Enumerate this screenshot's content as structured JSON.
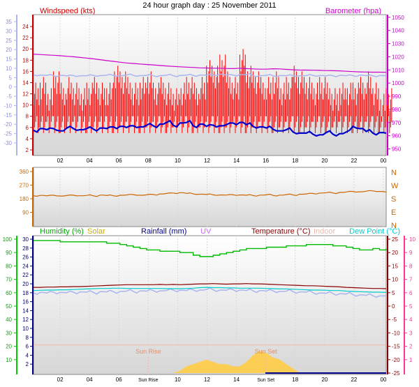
{
  "chart_data": [
    {
      "type": "line",
      "title": "24 hour graph day : 25 November 2011",
      "x_ticks": [
        "02",
        "04",
        "06",
        "08",
        "10",
        "12",
        "14",
        "16",
        "18",
        "20",
        "22",
        "00"
      ],
      "left_label": "Windspeed (kts)",
      "right_label": "Barometer (hpa)",
      "windspeed_ticks": [
        2,
        4,
        6,
        8,
        10,
        12,
        14,
        16,
        18,
        20,
        22,
        24
      ],
      "temp_ticks": [
        -30,
        -25,
        -20,
        -15,
        -10,
        -5,
        0,
        5,
        10,
        15,
        20,
        25,
        30,
        35
      ],
      "baro_ticks": [
        950,
        960,
        970,
        980,
        990,
        1000,
        1010,
        1020,
        1030,
        1040,
        1050
      ],
      "ylim_windspeed": [
        2,
        25
      ],
      "ylim_baro": [
        945,
        1052
      ],
      "series": [
        {
          "name": "Windspeed (kts)",
          "color": "#ff0000",
          "values": [
            12,
            13,
            11,
            14,
            12,
            13,
            12,
            11,
            12,
            13,
            12,
            12,
            15,
            14,
            13,
            12,
            13,
            14,
            12,
            13,
            12,
            11,
            12,
            13,
            12,
            13,
            16,
            15,
            17,
            14,
            13,
            18,
            15,
            14,
            13,
            13,
            14,
            12,
            13,
            15,
            14,
            13,
            12,
            13,
            12,
            11,
            12,
            12,
            12,
            13,
            14,
            12,
            10,
            11
          ]
        },
        {
          "name": "Gust",
          "color": "#0000cc",
          "values": [
            5.5,
            5.8,
            5.6,
            5.8,
            5.4,
            5.9,
            5.8,
            5.6,
            5.8,
            5.7,
            5.9,
            5.8,
            6.1,
            6.2,
            6.0,
            6.3,
            6.1,
            6.4,
            6.3,
            6.6,
            6.9,
            6.4,
            6.8,
            6.9,
            6.3,
            6.6,
            6.2,
            6.4,
            6.3,
            6.5,
            6.8,
            6.9,
            6.5,
            6.2,
            6.1,
            5.9,
            5.7,
            5.4,
            5.6,
            5.2,
            5.0,
            5.0,
            4.8,
            4.7,
            5.1,
            4.8,
            4.9,
            5.2,
            6.2,
            5.8,
            5.3,
            5.0,
            5.1,
            5.0
          ]
        },
        {
          "name": "Barometer (hpa)",
          "color": "#cc00cc",
          "values": [
            1022,
            1021.7,
            1021.4,
            1021.1,
            1020.8,
            1020.4,
            1020,
            1019.5,
            1019,
            1018.4,
            1017.8,
            1017.1,
            1016.5,
            1015.9,
            1015.3,
            1014.9,
            1014.5,
            1014.1,
            1013.8,
            1013.4,
            1013.0,
            1012.7,
            1012.4,
            1012.1,
            1011.9,
            1011.6,
            1011.5,
            1011.3,
            1011.3,
            1011.1,
            1011.0,
            1011.3,
            1011.0,
            1010.8,
            1010.6,
            1010.6,
            1010.9,
            1010.8,
            1010.4,
            1010.1,
            1009.9,
            1009.9,
            1009.8,
            1009.7,
            1009.5,
            1009.4,
            1009.3,
            1009.0,
            1008.7,
            1008.5,
            1008.4,
            1008.3,
            1008.3,
            1008.2
          ]
        },
        {
          "name": "Wind chill",
          "color": "#aab4ee",
          "values": [
            6.5,
            6.3,
            6.2,
            6.0,
            6.2,
            5.9,
            6.1,
            6.0,
            6.0,
            6.2,
            6.1,
            6.3,
            6.2,
            6.1,
            6.4,
            6.2,
            6.1,
            6.2,
            6.0,
            6.1,
            6.3,
            6.0,
            6.2,
            6.3,
            6.2,
            6.4,
            6.3,
            6.5,
            6.8,
            6.2,
            6.4,
            6.6,
            6.6,
            6.0,
            6.1,
            6.2,
            6.0,
            6.1,
            6.0,
            6.2,
            6.0,
            6.1,
            6.2,
            6.1,
            5.9,
            6.0,
            6.2,
            6.0,
            6.1,
            6.3,
            6.0,
            6.0,
            6.1,
            6.0
          ]
        }
      ]
    },
    {
      "type": "scatter",
      "left_ticks": [
        90,
        180,
        270,
        360
      ],
      "right_labels": [
        "N",
        "W",
        "S",
        "E",
        "N"
      ],
      "ylim": [
        0,
        360
      ],
      "series": [
        {
          "name": "Wind direction",
          "color": "#cc6600",
          "values": [
            200,
            202,
            199,
            203,
            198,
            201,
            203,
            200,
            202,
            199,
            204,
            201,
            200,
            203,
            205,
            207,
            203,
            206,
            208,
            212,
            215,
            218,
            220,
            215,
            212,
            210,
            208,
            206,
            205,
            204,
            206,
            205,
            203,
            201,
            204,
            206,
            202,
            204,
            207,
            205,
            210,
            212,
            215,
            218,
            220,
            218,
            222,
            225,
            228,
            226,
            230,
            232,
            228,
            224
          ]
        }
      ]
    },
    {
      "type": "line",
      "labels": {
        "humidity": "Humidity  (%)",
        "solar": "Solar",
        "rainfall": "Rainfall (mm)",
        "uv": "UV",
        "temperature": "Temperature (°C)",
        "indoor": "Indoor",
        "dewpoint": "Dew Point (°C)",
        "sunrise": "Sun Rise",
        "sunset": "Sun Set"
      },
      "x_ticks": [
        "02",
        "04",
        "06",
        "Sun Rise",
        "10",
        "12",
        "14",
        "Sun Set",
        "18",
        "20",
        "22",
        "00"
      ],
      "humidity_ticks": [
        10,
        20,
        30,
        40,
        50,
        60,
        70,
        80,
        90,
        100
      ],
      "rain_ticks": [
        2,
        4,
        6,
        8,
        10,
        12,
        14,
        16,
        18,
        20,
        22,
        24,
        26,
        28,
        30
      ],
      "temp_ticks": [
        -25,
        -20,
        -15,
        -10,
        -5,
        0,
        5,
        10,
        15,
        20,
        25
      ],
      "uv_ticks": [
        1,
        2,
        3,
        4,
        5,
        6,
        7,
        8,
        9,
        10
      ],
      "ylim_humidity": [
        0,
        100
      ],
      "ylim_temperature": [
        -25,
        25
      ],
      "series": [
        {
          "name": "Humidity  (%)",
          "color": "#00bb00",
          "values": [
            99,
            99,
            99,
            99,
            98,
            98,
            98,
            98,
            98,
            98,
            98,
            97,
            97,
            96,
            95,
            94,
            93,
            92,
            92,
            91,
            91,
            91,
            90,
            90,
            88,
            87,
            87,
            88,
            89,
            90,
            91,
            92,
            93,
            93,
            93,
            94,
            94,
            94,
            95,
            95,
            95,
            96,
            96,
            96,
            96,
            95,
            95,
            94,
            93,
            92,
            92,
            93,
            92,
            93
          ]
        },
        {
          "name": "Indoor",
          "color": "#f0b8a8",
          "values": [
            21,
            21,
            21,
            21,
            21,
            21,
            21,
            21,
            21,
            21,
            21,
            21,
            21,
            21,
            21,
            21,
            21,
            21,
            21,
            21,
            21,
            21,
            21,
            21,
            21,
            21,
            21,
            21,
            21,
            21,
            21,
            21,
            21,
            21,
            21,
            21,
            21,
            21,
            21,
            21,
            21,
            21,
            21,
            21,
            21,
            21,
            21,
            21,
            21,
            21,
            21,
            21,
            21,
            21
          ]
        },
        {
          "name": "Temperature (°C)",
          "color": "#880000",
          "values": [
            7.0,
            7.0,
            7.1,
            7.1,
            7.2,
            7.2,
            7.3,
            7.3,
            7.4,
            7.5,
            7.6,
            7.7,
            7.8,
            7.9,
            8.0,
            8.0,
            8.0,
            8.0,
            8.0,
            8.1,
            8.0,
            8.1,
            8.0,
            8.1,
            8.2,
            8.3,
            8.3,
            8.4,
            8.3,
            8.2,
            8.3,
            8.3,
            8.4,
            8.3,
            8.3,
            8.2,
            8.1,
            8.0,
            7.9,
            7.8,
            7.7,
            7.6,
            7.6,
            7.5,
            7.4,
            7.3,
            7.2,
            7.0,
            6.9,
            6.8,
            6.7,
            6.6,
            6.6,
            6.5
          ]
        },
        {
          "name": "Dew Point (°C)",
          "color": "#00cccc",
          "values": [
            5.8,
            5.9,
            6.0,
            6.0,
            6.1,
            6.1,
            6.2,
            6.3,
            6.4,
            6.5,
            6.6,
            6.6,
            6.7,
            6.7,
            6.6,
            6.6,
            6.6,
            6.6,
            6.6,
            6.6,
            6.5,
            6.5,
            6.5,
            6.6,
            6.7,
            6.9,
            7.0,
            6.9,
            6.9,
            6.8,
            6.8,
            6.7,
            6.7,
            6.7,
            6.7,
            6.6,
            6.5,
            6.4,
            6.4,
            6.3,
            6.2,
            6.1,
            6.0,
            6.0,
            5.9,
            5.8,
            5.8,
            5.6,
            5.5,
            5.4,
            5.3,
            5.2,
            5.2,
            5.1
          ]
        },
        {
          "name": "Wind chill",
          "color": "#aab4ee",
          "values": [
            5.0,
            5.1,
            4.9,
            5.2,
            5.1,
            5.0,
            5.2,
            5.3,
            5.2,
            5.1,
            5.4,
            5.3,
            5.4,
            5.5,
            5.6,
            5.5,
            5.7,
            5.6,
            5.8,
            5.7,
            5.8,
            6.0,
            5.9,
            5.8,
            6.1,
            6.0,
            6.2,
            6.1,
            6.0,
            5.9,
            6.1,
            6.0,
            5.8,
            5.7,
            5.8,
            5.6,
            5.7,
            5.5,
            5.6,
            5.4,
            5.3,
            5.2,
            5.0,
            4.9,
            4.8,
            4.7,
            4.6,
            4.5,
            4.3,
            4.2,
            4.0,
            3.9,
            3.8,
            3.8
          ]
        },
        {
          "name": "Solar",
          "color": "#ffcc44",
          "values": [
            0,
            0,
            0,
            0,
            0,
            0,
            0,
            0,
            0,
            0,
            0,
            0,
            0,
            0,
            0,
            0,
            0,
            0,
            0,
            0,
            0,
            0,
            0.5,
            1.5,
            2,
            2.5,
            3,
            2.5,
            2,
            2,
            1.5,
            1.5,
            2.5,
            4,
            5,
            4.5,
            3.5,
            3,
            2,
            1,
            0,
            0,
            0,
            0,
            0,
            0,
            0,
            0,
            0,
            0,
            0,
            0,
            0,
            0
          ]
        }
      ]
    }
  ]
}
